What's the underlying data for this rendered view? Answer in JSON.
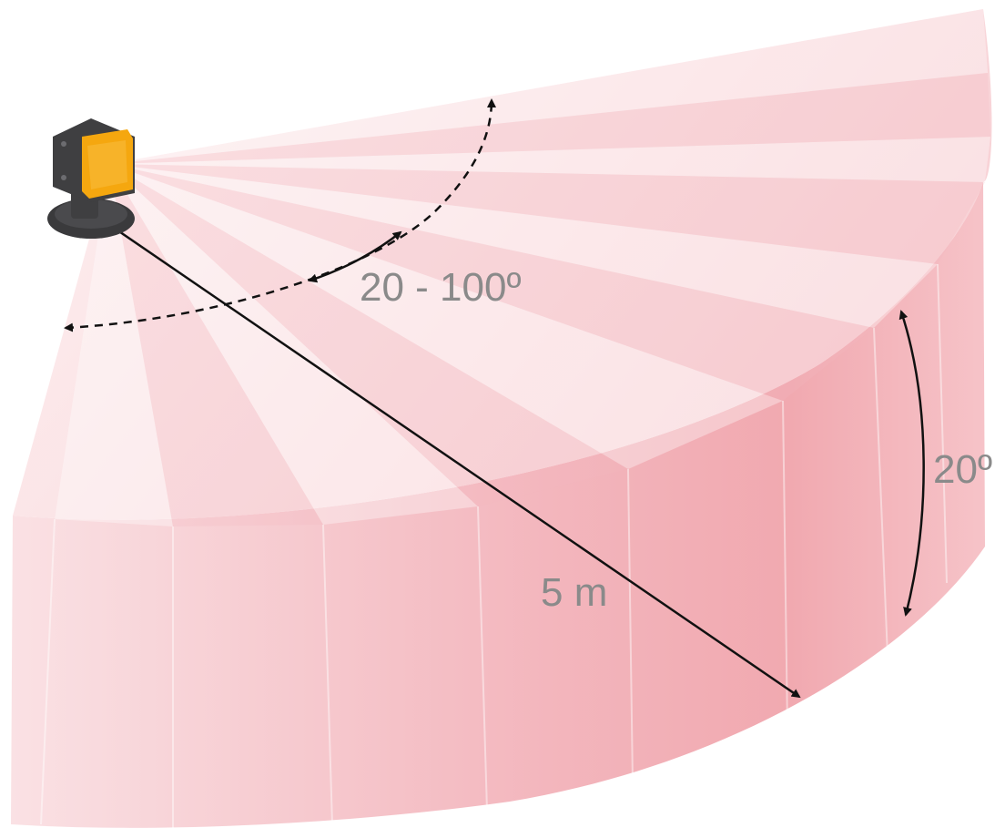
{
  "labels": {
    "pan_range": "20 - 100º",
    "tilt_angle": "20º",
    "range_distance": "5 m"
  },
  "colors": {
    "beam_light": "#fbe4e7",
    "beam_mid": "#f6c6cb",
    "beam_dark": "#f1a9b0",
    "label_text": "#8a8a8a",
    "arrow": "#111111",
    "sensor_body": "#3f3f41",
    "sensor_lens": "#f5a70f"
  },
  "icons": {
    "sensor": "lidar-sensor-icon"
  }
}
